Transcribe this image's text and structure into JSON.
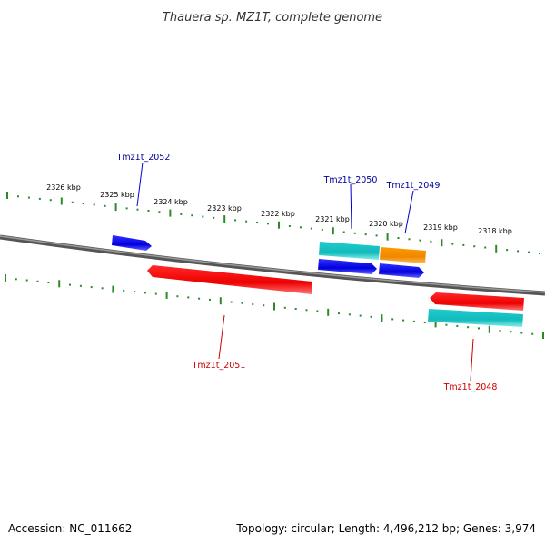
{
  "title": "Thauera sp. MZ1T, complete genome",
  "ticks": [
    "2326 kbp",
    "2325 kbp",
    "2324 kbp",
    "2323 kbp",
    "2322 kbp",
    "2321 kbp",
    "2320 kbp",
    "2319 kbp",
    "2318 kbp"
  ],
  "genes": [
    {
      "name": "Tmz1t_2052",
      "strand": "forward",
      "color": "#0000ee"
    },
    {
      "name": "Tmz1t_2051",
      "strand": "reverse",
      "color": "#ee0000"
    },
    {
      "name": "Tmz1t_2050",
      "strand": "forward",
      "color": "#0000ee",
      "paired_color": "#11bbbb"
    },
    {
      "name": "Tmz1t_2049",
      "strand": "forward",
      "color": "#0000ee",
      "paired_color": "#ff8800"
    },
    {
      "name": "Tmz1t_2048",
      "strand": "reverse",
      "color": "#ee0000",
      "paired_color": "#11bbbb"
    }
  ],
  "colors": {
    "backbone": "#777777",
    "tick": "#2a8a2a",
    "forward_label": "#000099",
    "reverse_label": "#cc0000"
  },
  "footer": {
    "accession": "Accession: NC_011662",
    "topology": "Topology: circular; Length: 4,496,212 bp; Genes: 3,974"
  }
}
